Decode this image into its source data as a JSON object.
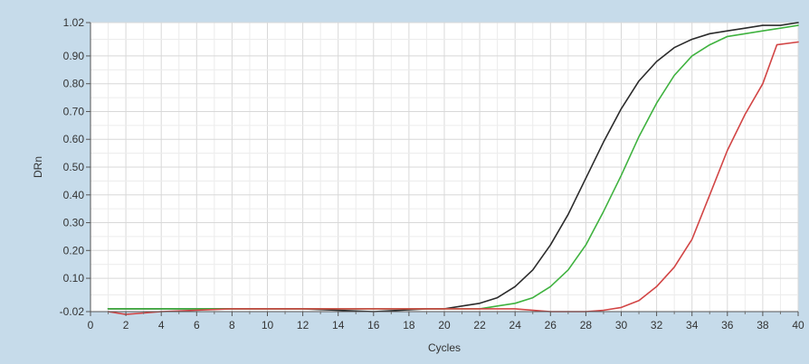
{
  "chart_data": {
    "type": "line",
    "title": "",
    "xlabel": "Cycles",
    "ylabel": "DRn",
    "xlim": [
      0,
      40
    ],
    "ylim": [
      -0.02,
      1.02
    ],
    "x_ticks": [
      0,
      2,
      4,
      6,
      8,
      10,
      12,
      14,
      16,
      18,
      20,
      22,
      24,
      26,
      28,
      30,
      32,
      34,
      36,
      38,
      40
    ],
    "x_tick_labels": [
      "0",
      "2",
      "4",
      "6",
      "8",
      "10",
      "12",
      "14",
      "16",
      "18",
      "20",
      "22",
      "24",
      "26",
      "28",
      "30",
      "32",
      "34",
      "36",
      "38",
      "40"
    ],
    "y_ticks": [
      -0.02,
      0.1,
      0.2,
      0.3,
      0.4,
      0.5,
      0.6,
      0.7,
      0.8,
      0.9,
      1.02
    ],
    "y_tick_labels": [
      "-0.02",
      "0.10",
      "0.20",
      "0.30",
      "0.40",
      "0.50",
      "0.60",
      "0.70",
      "0.80",
      "0.90",
      "1.02"
    ],
    "grid": true,
    "legend": false,
    "series": [
      {
        "color": "#2b2b2b",
        "x": [
          1,
          4,
          8,
          12,
          16,
          19,
          20,
          21,
          22,
          23,
          24,
          25,
          26,
          27,
          28,
          29,
          30,
          31,
          32,
          33,
          34,
          35,
          36,
          37,
          38,
          39,
          40
        ],
        "y": [
          -0.01,
          -0.01,
          -0.01,
          -0.01,
          -0.02,
          -0.01,
          -0.01,
          0.0,
          0.01,
          0.03,
          0.07,
          0.13,
          0.22,
          0.33,
          0.46,
          0.59,
          0.71,
          0.81,
          0.88,
          0.93,
          0.96,
          0.98,
          0.99,
          1.0,
          1.01,
          1.01,
          1.02
        ]
      },
      {
        "color": "#3fb23f",
        "x": [
          1,
          4,
          8,
          12,
          16,
          20,
          22,
          23,
          24,
          25,
          26,
          27,
          28,
          29,
          30,
          31,
          32,
          33,
          34,
          35,
          36,
          37,
          38,
          39,
          40
        ],
        "y": [
          -0.01,
          -0.01,
          -0.01,
          -0.01,
          -0.01,
          -0.01,
          -0.01,
          0.0,
          0.01,
          0.03,
          0.07,
          0.13,
          0.22,
          0.34,
          0.47,
          0.61,
          0.73,
          0.83,
          0.9,
          0.94,
          0.97,
          0.98,
          0.99,
          1.0,
          1.01
        ]
      },
      {
        "color": "#d24545",
        "x": [
          1,
          2,
          4,
          8,
          12,
          16,
          20,
          24,
          26,
          28,
          29,
          30,
          31,
          32,
          33,
          34,
          35,
          36,
          37,
          38,
          38.8,
          40
        ],
        "y": [
          -0.02,
          -0.03,
          -0.02,
          -0.01,
          -0.01,
          -0.01,
          -0.01,
          -0.01,
          -0.02,
          -0.02,
          -0.015,
          -0.005,
          0.02,
          0.07,
          0.14,
          0.24,
          0.4,
          0.56,
          0.69,
          0.8,
          0.94,
          0.95
        ]
      }
    ]
  }
}
